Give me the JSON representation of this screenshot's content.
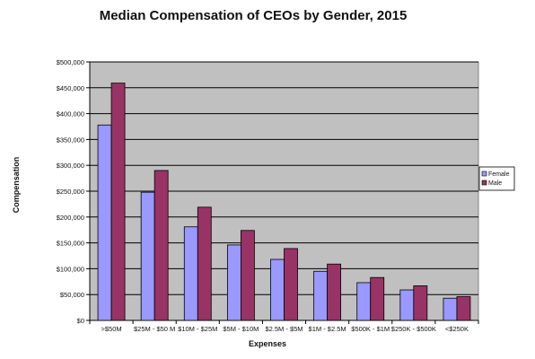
{
  "chart_data": {
    "type": "bar",
    "title": "Median Compensation of CEOs by Gender, 2015",
    "xlabel": "Expenses",
    "ylabel": "Compensation",
    "categories": [
      ">$50M",
      "$25M - $50 M",
      "$10M - $25M",
      "$5M - $10M",
      "$2.5M - $5M",
      "$1M - $2.5M",
      "$500K - $1M",
      "$250K - $500K",
      "<$250K"
    ],
    "series": [
      {
        "name": "Female",
        "color": "#9999ff",
        "values": [
          378000,
          248000,
          181000,
          146000,
          118000,
          95000,
          73000,
          59000,
          43000
        ]
      },
      {
        "name": "Male",
        "color": "#993366",
        "values": [
          459000,
          290000,
          219000,
          174000,
          139000,
          109000,
          83000,
          67000,
          46000
        ]
      }
    ],
    "ylim": [
      0,
      500000
    ],
    "yticks": [
      "$0",
      "$50,000",
      "$100,000",
      "$150,000",
      "$200,000",
      "$250,000",
      "$300,000",
      "$350,000",
      "$400,000",
      "$450,000",
      "$500,000"
    ],
    "grid": true,
    "plot_background": "#c0c0c0",
    "legend_position": "right"
  }
}
